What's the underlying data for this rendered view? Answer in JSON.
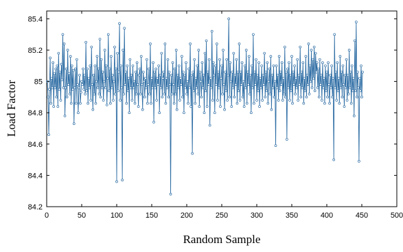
{
  "chart_data": {
    "type": "line",
    "title": "",
    "xlabel": "Random Sample",
    "ylabel": "Load Factor",
    "xlim": [
      0,
      500
    ],
    "ylim": [
      84.2,
      85.45
    ],
    "xticks": [
      0,
      50,
      100,
      150,
      200,
      250,
      300,
      350,
      400,
      450,
      500
    ],
    "yticks": [
      84.2,
      84.4,
      84.6,
      84.8,
      85,
      85.2,
      85.4
    ],
    "ytick_labels": [
      "84.2",
      "84.4",
      "84.6",
      "84.8",
      "85",
      "85.2",
      "85.4"
    ],
    "grid": false,
    "legend": "none",
    "markers": "open circles",
    "series": [
      {
        "color": "#2e6da4",
        "x_start": 1,
        "x_step": 1,
        "values": [
          85.0,
          84.9,
          84.66,
          84.95,
          85.15,
          84.86,
          85.02,
          84.96,
          85.12,
          84.84,
          85.05,
          84.96,
          85.08,
          84.9,
          85.1,
          84.84,
          85.18,
          84.95,
          85.06,
          84.88,
          85.11,
          85.01,
          85.3,
          84.96,
          85.24,
          84.78,
          84.96,
          85.08,
          84.9,
          85.2,
          84.98,
          85.05,
          84.92,
          85.16,
          84.86,
          85.1,
          84.95,
          85.07,
          84.73,
          84.96,
          85.08,
          84.86,
          85.14,
          84.98,
          84.8,
          84.96,
          85.04,
          84.86,
          84.93,
          85.0,
          84.98,
          85.08,
          84.95,
          85.04,
          84.92,
          85.25,
          84.94,
          85.08,
          84.86,
          85.02,
          84.96,
          85.1,
          84.88,
          85.22,
          84.98,
          84.82,
          85.04,
          84.92,
          85.1,
          84.86,
          85.0,
          85.16,
          84.96,
          85.08,
          84.92,
          85.27,
          84.9,
          85.14,
          84.96,
          85.06,
          84.88,
          85.0,
          85.2,
          84.96,
          85.1,
          84.85,
          85.02,
          85.3,
          84.94,
          85.08,
          84.86,
          85.16,
          84.96,
          85.04,
          84.88,
          85.0,
          85.22,
          84.92,
          85.08,
          84.36,
          85.18,
          84.94,
          85.06,
          85.37,
          84.88,
          85.1,
          84.96,
          84.37,
          85.2,
          84.92,
          85.34,
          84.98,
          85.06,
          84.86,
          85.1,
          84.94,
          85.02,
          84.8,
          85.14,
          84.96,
          85.04,
          84.88,
          85.1,
          84.96,
          85.0,
          84.86,
          85.06,
          84.92,
          85.12,
          84.98,
          84.84,
          85.04,
          85.08,
          84.92,
          85.16,
          84.98,
          84.82,
          85.06,
          85.0,
          84.9,
          85.02,
          84.96,
          85.14,
          84.86,
          84.98,
          85.08,
          84.92,
          85.24,
          84.86,
          85.02,
          84.96,
          85.12,
          84.74,
          85.06,
          84.96,
          85.08,
          84.88,
          85.02,
          84.98,
          85.1,
          84.8,
          85.04,
          84.96,
          85.18,
          84.9,
          85.02,
          85.06,
          84.92,
          85.24,
          84.86,
          85.02,
          84.96,
          85.14,
          84.9,
          85.06,
          84.98,
          84.28,
          85.04,
          84.92,
          85.12,
          84.98,
          84.86,
          85.08,
          84.92,
          85.2,
          84.82,
          85.04,
          84.96,
          85.1,
          84.88,
          85.02,
          84.98,
          85.16,
          84.9,
          85.06,
          84.8,
          85.04,
          84.96,
          85.12,
          84.92,
          85.0,
          84.86,
          85.08,
          84.96,
          85.24,
          84.84,
          85.04,
          84.54,
          85.06,
          84.94,
          85.14,
          84.86,
          85.02,
          84.96,
          85.1,
          84.92,
          85.2,
          84.84,
          85.06,
          85.0,
          84.9,
          85.12,
          84.96,
          85.04,
          84.8,
          85.18,
          84.94,
          85.26,
          84.84,
          85.06,
          84.98,
          85.14,
          84.72,
          85.02,
          84.96,
          85.32,
          84.88,
          85.12,
          85.04,
          84.8,
          85.1,
          84.98,
          85.24,
          84.88,
          85.06,
          84.96,
          85.14,
          84.84,
          85.02,
          85.1,
          84.92,
          85.2,
          84.98,
          84.82,
          85.06,
          84.94,
          85.14,
          84.88,
          85.04,
          85.4,
          84.9,
          85.12,
          85.0,
          84.84,
          85.06,
          84.96,
          85.18,
          84.9,
          85.04,
          84.98,
          85.14,
          84.86,
          85.06,
          84.94,
          85.24,
          84.88,
          85.06,
          84.98,
          85.12,
          84.9,
          85.0,
          84.84,
          85.1,
          84.96,
          85.2,
          84.86,
          85.06,
          84.98,
          85.16,
          84.92,
          85.04,
          84.8,
          85.1,
          84.96,
          85.3,
          84.86,
          85.06,
          84.98,
          85.14,
          84.88,
          85.04,
          84.94,
          85.12,
          84.84,
          85.02,
          84.96,
          85.1,
          84.88,
          85.04,
          84.98,
          85.18,
          84.9,
          85.06,
          84.94,
          85.12,
          84.86,
          85.0,
          85.08,
          84.92,
          85.16,
          84.82,
          85.04,
          84.96,
          85.1,
          84.9,
          85.0,
          84.59,
          85.1,
          84.96,
          85.04,
          84.88,
          85.16,
          84.94,
          85.06,
          84.98,
          85.12,
          84.88,
          85.02,
          84.92,
          85.22,
          84.9,
          85.06,
          84.63,
          85.08,
          84.96,
          85.12,
          84.88,
          85.04,
          84.94,
          85.16,
          84.86,
          85.06,
          84.98,
          85.1,
          84.92,
          85.02,
          84.96,
          85.14,
          84.88,
          85.04,
          84.98,
          85.22,
          84.9,
          85.06,
          84.96,
          85.12,
          84.86,
          85.02,
          84.94,
          85.16,
          84.9,
          85.04,
          84.98,
          85.24,
          84.92,
          85.1,
          85.0,
          85.2,
          84.96,
          85.14,
          85.02,
          85.22,
          84.94,
          85.18,
          85.06,
          85.12,
          84.96,
          85.08,
          84.9,
          85.14,
          84.98,
          85.04,
          84.88,
          85.12,
          84.96,
          85.02,
          84.86,
          85.1,
          84.94,
          85.06,
          84.9,
          85.12,
          84.98,
          84.86,
          85.04,
          84.96,
          85.1,
          84.9,
          85.02,
          84.5,
          85.3,
          84.96,
          85.06,
          84.88,
          85.12,
          84.94,
          85.02,
          84.86,
          85.16,
          84.96,
          85.06,
          84.9,
          85.1,
          84.98,
          84.84,
          85.04,
          84.96,
          85.14,
          84.88,
          85.04,
          84.92,
          85.2,
          84.96,
          85.06,
          84.86,
          85.1,
          84.94,
          85.02,
          84.78,
          85.26,
          84.94,
          85.38,
          84.9,
          85.06,
          84.96,
          84.49,
          85.02,
          84.94,
          85.1,
          84.9,
          85.06
        ]
      }
    ]
  }
}
